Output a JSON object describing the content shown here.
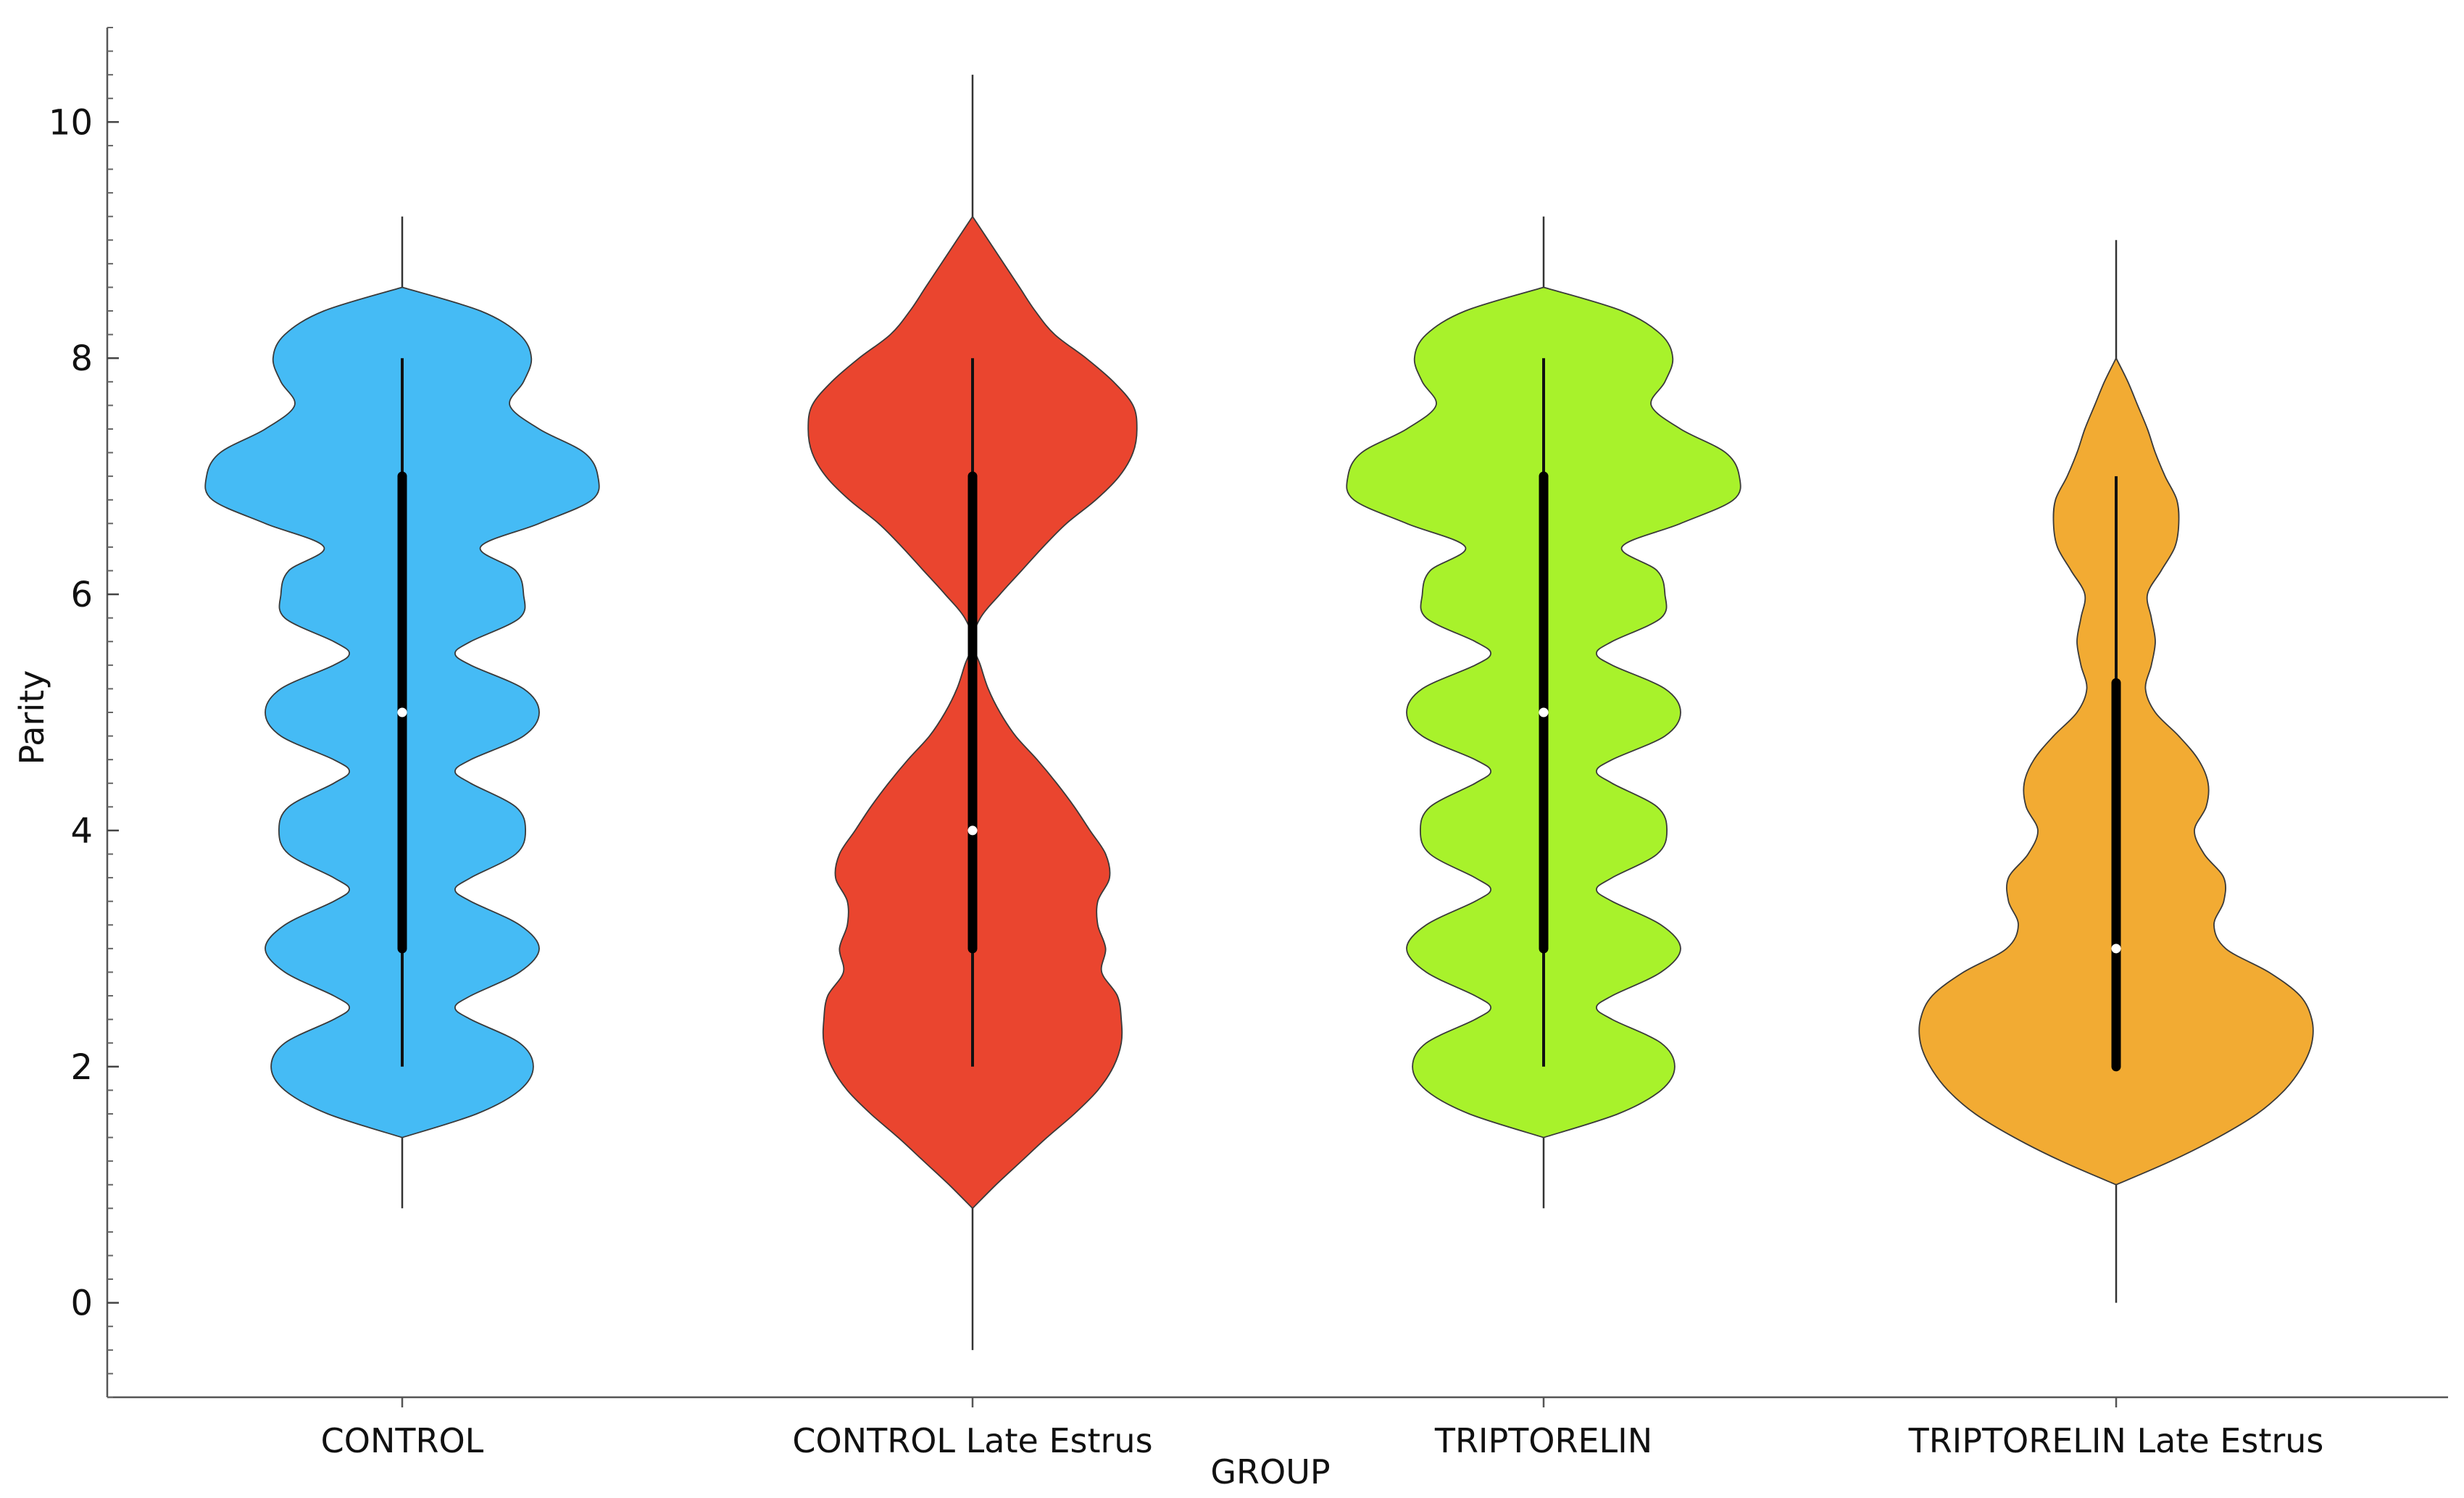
{
  "chart_data": {
    "type": "violin",
    "xlabel": "GROUP",
    "ylabel": "Parity",
    "ylim": [
      -0.8,
      10.8
    ],
    "yticks": [
      0,
      2,
      4,
      6,
      8,
      10
    ],
    "ytick_labels": [
      "0",
      "2",
      "4",
      "6",
      "8",
      "10"
    ],
    "grid": false,
    "legend": "none",
    "groups": [
      {
        "category": "CONTROL",
        "color": "#45bbf5",
        "whisker": [
          0.8,
          9.2
        ],
        "box": [
          3,
          7
        ],
        "minmax": [
          2,
          8
        ],
        "median": 5,
        "density": [
          [
            1.4,
            0.0
          ],
          [
            1.6,
            0.38
          ],
          [
            1.8,
            0.6
          ],
          [
            2.0,
            0.67
          ],
          [
            2.2,
            0.6
          ],
          [
            2.4,
            0.35
          ],
          [
            2.5,
            0.27
          ],
          [
            2.6,
            0.35
          ],
          [
            2.8,
            0.6
          ],
          [
            3.0,
            0.7
          ],
          [
            3.2,
            0.6
          ],
          [
            3.4,
            0.35
          ],
          [
            3.5,
            0.27
          ],
          [
            3.6,
            0.35
          ],
          [
            3.8,
            0.58
          ],
          [
            4.0,
            0.63
          ],
          [
            4.2,
            0.58
          ],
          [
            4.4,
            0.35
          ],
          [
            4.5,
            0.27
          ],
          [
            4.6,
            0.35
          ],
          [
            4.8,
            0.62
          ],
          [
            5.0,
            0.7
          ],
          [
            5.2,
            0.62
          ],
          [
            5.4,
            0.35
          ],
          [
            5.5,
            0.27
          ],
          [
            5.6,
            0.35
          ],
          [
            5.8,
            0.6
          ],
          [
            6.0,
            0.62
          ],
          [
            6.2,
            0.58
          ],
          [
            6.4,
            0.4
          ],
          [
            6.6,
            0.7
          ],
          [
            6.8,
            0.97
          ],
          [
            7.0,
            1.0
          ],
          [
            7.2,
            0.93
          ],
          [
            7.4,
            0.7
          ],
          [
            7.6,
            0.55
          ],
          [
            7.8,
            0.62
          ],
          [
            8.0,
            0.66
          ],
          [
            8.2,
            0.6
          ],
          [
            8.4,
            0.4
          ],
          [
            8.6,
            0.0
          ]
        ]
      },
      {
        "category": "CONTROL Late Estrus",
        "color": "#ea452f",
        "whisker": [
          -0.4,
          10.4
        ],
        "box": [
          3,
          7
        ],
        "minmax": [
          2,
          8
        ],
        "median": 4,
        "density": [
          [
            0.8,
            0.0
          ],
          [
            1.0,
            0.12
          ],
          [
            1.2,
            0.25
          ],
          [
            1.4,
            0.38
          ],
          [
            1.6,
            0.52
          ],
          [
            1.8,
            0.64
          ],
          [
            2.0,
            0.72
          ],
          [
            2.2,
            0.76
          ],
          [
            2.4,
            0.76
          ],
          [
            2.6,
            0.74
          ],
          [
            2.8,
            0.66
          ],
          [
            3.0,
            0.68
          ],
          [
            3.2,
            0.64
          ],
          [
            3.4,
            0.64
          ],
          [
            3.6,
            0.7
          ],
          [
            3.8,
            0.68
          ],
          [
            4.0,
            0.6
          ],
          [
            4.2,
            0.52
          ],
          [
            4.4,
            0.43
          ],
          [
            4.6,
            0.33
          ],
          [
            4.8,
            0.22
          ],
          [
            5.0,
            0.14
          ],
          [
            5.2,
            0.08
          ],
          [
            5.4,
            0.04
          ],
          [
            5.6,
            0.0
          ],
          [
            5.8,
            0.04
          ],
          [
            6.0,
            0.14
          ],
          [
            6.2,
            0.25
          ],
          [
            6.4,
            0.36
          ],
          [
            6.6,
            0.48
          ],
          [
            6.8,
            0.63
          ],
          [
            7.0,
            0.75
          ],
          [
            7.2,
            0.82
          ],
          [
            7.4,
            0.84
          ],
          [
            7.6,
            0.82
          ],
          [
            7.8,
            0.72
          ],
          [
            8.0,
            0.58
          ],
          [
            8.2,
            0.42
          ],
          [
            8.4,
            0.32
          ],
          [
            8.6,
            0.24
          ],
          [
            8.8,
            0.16
          ],
          [
            9.0,
            0.08
          ],
          [
            9.2,
            0.0
          ]
        ]
      },
      {
        "category": "TRIPTORELIN",
        "color": "#a8f22b",
        "whisker": [
          0.8,
          9.2
        ],
        "box": [
          3,
          7
        ],
        "minmax": [
          2,
          8
        ],
        "median": 5,
        "density": [
          [
            1.4,
            0.0
          ],
          [
            1.6,
            0.38
          ],
          [
            1.8,
            0.6
          ],
          [
            2.0,
            0.67
          ],
          [
            2.2,
            0.6
          ],
          [
            2.4,
            0.35
          ],
          [
            2.5,
            0.27
          ],
          [
            2.6,
            0.35
          ],
          [
            2.8,
            0.6
          ],
          [
            3.0,
            0.7
          ],
          [
            3.2,
            0.6
          ],
          [
            3.4,
            0.35
          ],
          [
            3.5,
            0.27
          ],
          [
            3.6,
            0.35
          ],
          [
            3.8,
            0.58
          ],
          [
            4.0,
            0.63
          ],
          [
            4.2,
            0.58
          ],
          [
            4.4,
            0.35
          ],
          [
            4.5,
            0.27
          ],
          [
            4.6,
            0.35
          ],
          [
            4.8,
            0.62
          ],
          [
            5.0,
            0.7
          ],
          [
            5.2,
            0.62
          ],
          [
            5.4,
            0.35
          ],
          [
            5.5,
            0.27
          ],
          [
            5.6,
            0.35
          ],
          [
            5.8,
            0.6
          ],
          [
            6.0,
            0.62
          ],
          [
            6.2,
            0.58
          ],
          [
            6.4,
            0.4
          ],
          [
            6.6,
            0.7
          ],
          [
            6.8,
            0.97
          ],
          [
            7.0,
            1.0
          ],
          [
            7.2,
            0.93
          ],
          [
            7.4,
            0.7
          ],
          [
            7.6,
            0.55
          ],
          [
            7.8,
            0.62
          ],
          [
            8.0,
            0.66
          ],
          [
            8.2,
            0.6
          ],
          [
            8.4,
            0.4
          ],
          [
            8.6,
            0.0
          ]
        ]
      },
      {
        "category": "TRIPTORELIN Late Estrus",
        "color": "#f2ab33",
        "whisker": [
          0.0,
          9.0
        ],
        "box": [
          2,
          5.25
        ],
        "minmax": [
          2,
          7
        ],
        "median": 3,
        "density": [
          [
            1.0,
            0.0
          ],
          [
            1.2,
            0.28
          ],
          [
            1.4,
            0.52
          ],
          [
            1.6,
            0.72
          ],
          [
            1.8,
            0.86
          ],
          [
            2.0,
            0.95
          ],
          [
            2.2,
            1.0
          ],
          [
            2.4,
            1.0
          ],
          [
            2.6,
            0.94
          ],
          [
            2.8,
            0.78
          ],
          [
            3.0,
            0.56
          ],
          [
            3.2,
            0.5
          ],
          [
            3.4,
            0.55
          ],
          [
            3.6,
            0.55
          ],
          [
            3.8,
            0.45
          ],
          [
            4.0,
            0.4
          ],
          [
            4.2,
            0.46
          ],
          [
            4.4,
            0.47
          ],
          [
            4.6,
            0.42
          ],
          [
            4.8,
            0.32
          ],
          [
            5.0,
            0.2
          ],
          [
            5.2,
            0.15
          ],
          [
            5.4,
            0.18
          ],
          [
            5.6,
            0.2
          ],
          [
            5.8,
            0.18
          ],
          [
            6.0,
            0.16
          ],
          [
            6.2,
            0.23
          ],
          [
            6.4,
            0.3
          ],
          [
            6.6,
            0.32
          ],
          [
            6.8,
            0.31
          ],
          [
            7.0,
            0.25
          ],
          [
            7.2,
            0.2
          ],
          [
            7.4,
            0.16
          ],
          [
            7.6,
            0.11
          ],
          [
            7.8,
            0.06
          ],
          [
            8.0,
            0.0
          ]
        ]
      }
    ]
  }
}
